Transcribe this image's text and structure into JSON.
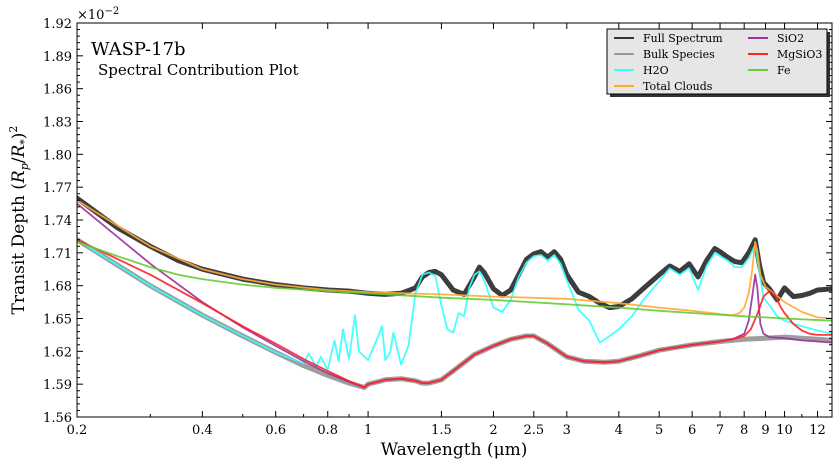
{
  "chart_data": {
    "type": "line",
    "title": "WASP-17b",
    "subtitle": "Spectral Contribution Plot",
    "xlabel": "Wavelength (μm)",
    "ylabel": "Transit Depth (R_p/R_*)^2",
    "ylabel_parts": {
      "pre": "Transit Depth (",
      "rp": "R",
      "p": "p",
      "slash": "/",
      "rs": "R",
      "s": "*",
      "post": ")",
      "sup": "2"
    },
    "y_multiplier": {
      "base": "×10",
      "exp": "−2"
    },
    "x_scale": "log",
    "xlim": [
      0.2,
      13.0
    ],
    "ylim": [
      1.56,
      1.92
    ],
    "x_ticks": [
      {
        "value": 0.2,
        "label": "0.2"
      },
      {
        "value": 0.4,
        "label": "0.4"
      },
      {
        "value": 0.6,
        "label": "0.6"
      },
      {
        "value": 0.8,
        "label": "0.8"
      },
      {
        "value": 1.0,
        "label": "1"
      },
      {
        "value": 1.5,
        "label": "1.5"
      },
      {
        "value": 2.0,
        "label": "2"
      },
      {
        "value": 2.5,
        "label": "2.5"
      },
      {
        "value": 3.0,
        "label": "3"
      },
      {
        "value": 4.0,
        "label": "4"
      },
      {
        "value": 5.0,
        "label": "5"
      },
      {
        "value": 6.0,
        "label": "6"
      },
      {
        "value": 7.0,
        "label": "7"
      },
      {
        "value": 8.0,
        "label": "8"
      },
      {
        "value": 9.0,
        "label": "9"
      },
      {
        "value": 10.0,
        "label": "10"
      },
      {
        "value": 12.0,
        "label": "12"
      }
    ],
    "y_ticks": [
      {
        "value": 1.56,
        "label": "1.56"
      },
      {
        "value": 1.59,
        "label": "1.59"
      },
      {
        "value": 1.62,
        "label": "1.62"
      },
      {
        "value": 1.65,
        "label": "1.65"
      },
      {
        "value": 1.68,
        "label": "1.68"
      },
      {
        "value": 1.71,
        "label": "1.71"
      },
      {
        "value": 1.74,
        "label": "1.74"
      },
      {
        "value": 1.77,
        "label": "1.77"
      },
      {
        "value": 1.8,
        "label": "1.80"
      },
      {
        "value": 1.83,
        "label": "1.83"
      },
      {
        "value": 1.86,
        "label": "1.86"
      },
      {
        "value": 1.89,
        "label": "1.89"
      },
      {
        "value": 1.92,
        "label": "1.92"
      }
    ],
    "grid": false,
    "legend_position": "top-right",
    "series": [
      {
        "name": "Full Spectrum",
        "color": "#333333",
        "width": 5,
        "x": [
          0.2,
          0.25,
          0.3,
          0.35,
          0.4,
          0.5,
          0.6,
          0.7,
          0.8,
          0.9,
          1.0,
          1.1,
          1.2,
          1.3,
          1.35,
          1.4,
          1.45,
          1.5,
          1.6,
          1.7,
          1.8,
          1.85,
          1.9,
          2.0,
          2.1,
          2.2,
          2.3,
          2.4,
          2.5,
          2.6,
          2.7,
          2.8,
          2.9,
          3.0,
          3.2,
          3.4,
          3.6,
          3.8,
          4.0,
          4.3,
          4.6,
          5.0,
          5.3,
          5.6,
          5.9,
          6.2,
          6.5,
          6.8,
          7.0,
          7.3,
          7.6,
          7.9,
          8.2,
          8.5,
          8.7,
          8.9,
          9.2,
          9.6,
          10.0,
          10.5,
          11.0,
          11.5,
          12.0,
          13.0
        ],
        "y": [
          1.76,
          1.733,
          1.716,
          1.703,
          1.695,
          1.686,
          1.681,
          1.678,
          1.676,
          1.675,
          1.673,
          1.672,
          1.673,
          1.678,
          1.688,
          1.692,
          1.693,
          1.69,
          1.676,
          1.672,
          1.688,
          1.697,
          1.692,
          1.677,
          1.671,
          1.676,
          1.69,
          1.704,
          1.709,
          1.711,
          1.706,
          1.711,
          1.704,
          1.69,
          1.674,
          1.67,
          1.664,
          1.66,
          1.661,
          1.668,
          1.678,
          1.69,
          1.698,
          1.693,
          1.7,
          1.688,
          1.703,
          1.714,
          1.711,
          1.706,
          1.702,
          1.701,
          1.71,
          1.722,
          1.699,
          1.683,
          1.677,
          1.667,
          1.678,
          1.67,
          1.671,
          1.673,
          1.676,
          1.677
        ]
      },
      {
        "name": "Bulk Species",
        "color": "#999999",
        "width": 5,
        "x": [
          0.2,
          0.3,
          0.4,
          0.5,
          0.6,
          0.7,
          0.8,
          0.9,
          0.98,
          1.0,
          1.05,
          1.1,
          1.2,
          1.3,
          1.35,
          1.4,
          1.5,
          1.6,
          1.8,
          2.0,
          2.2,
          2.4,
          2.5,
          2.7,
          3.0,
          3.3,
          3.7,
          4.0,
          4.5,
          5.0,
          6.0,
          7.0,
          8.0,
          9.0,
          10.0,
          11.0,
          12.0,
          13.0
        ],
        "y": [
          1.722,
          1.68,
          1.653,
          1.634,
          1.619,
          1.607,
          1.598,
          1.591,
          1.587,
          1.59,
          1.592,
          1.594,
          1.595,
          1.593,
          1.591,
          1.591,
          1.594,
          1.602,
          1.617,
          1.625,
          1.631,
          1.634,
          1.634,
          1.627,
          1.615,
          1.611,
          1.61,
          1.611,
          1.616,
          1.621,
          1.626,
          1.629,
          1.631,
          1.632,
          1.633,
          1.632,
          1.631,
          1.63
        ]
      },
      {
        "name": "H2O",
        "color": "#33ffff",
        "width": 1.8,
        "x": [
          0.2,
          0.3,
          0.4,
          0.5,
          0.6,
          0.7,
          0.72,
          0.75,
          0.77,
          0.8,
          0.83,
          0.85,
          0.87,
          0.9,
          0.93,
          0.95,
          1.0,
          1.05,
          1.08,
          1.1,
          1.13,
          1.15,
          1.2,
          1.25,
          1.3,
          1.35,
          1.4,
          1.45,
          1.5,
          1.55,
          1.6,
          1.65,
          1.7,
          1.75,
          1.8,
          1.85,
          1.9,
          1.95,
          2.0,
          2.1,
          2.2,
          2.3,
          2.4,
          2.5,
          2.6,
          2.7,
          2.8,
          2.9,
          3.0,
          3.2,
          3.4,
          3.6,
          3.8,
          4.0,
          4.3,
          4.6,
          5.0,
          5.3,
          5.6,
          5.9,
          6.2,
          6.5,
          6.8,
          7.0,
          7.3,
          7.6,
          7.9,
          8.2,
          8.5,
          8.7,
          8.9,
          9.2,
          9.6,
          10.0,
          11.0,
          12.0,
          13.0
        ],
        "y": [
          1.722,
          1.68,
          1.653,
          1.634,
          1.619,
          1.609,
          1.618,
          1.606,
          1.615,
          1.603,
          1.63,
          1.611,
          1.64,
          1.613,
          1.653,
          1.62,
          1.612,
          1.631,
          1.643,
          1.612,
          1.619,
          1.637,
          1.608,
          1.625,
          1.673,
          1.69,
          1.692,
          1.689,
          1.662,
          1.64,
          1.637,
          1.655,
          1.652,
          1.678,
          1.69,
          1.693,
          1.685,
          1.672,
          1.66,
          1.656,
          1.667,
          1.688,
          1.701,
          1.707,
          1.708,
          1.703,
          1.708,
          1.7,
          1.685,
          1.658,
          1.648,
          1.628,
          1.634,
          1.64,
          1.652,
          1.668,
          1.684,
          1.696,
          1.69,
          1.696,
          1.676,
          1.698,
          1.71,
          1.707,
          1.703,
          1.697,
          1.697,
          1.705,
          1.717,
          1.692,
          1.669,
          1.662,
          1.652,
          1.648,
          1.643,
          1.639,
          1.636
        ]
      },
      {
        "name": "Total Clouds",
        "color": "#ffaa33",
        "width": 1.8,
        "x": [
          0.2,
          0.3,
          0.4,
          0.5,
          0.6,
          0.8,
          1.0,
          1.5,
          2.0,
          3.0,
          4.0,
          5.0,
          6.0,
          7.0,
          7.5,
          7.8,
          8.0,
          8.2,
          8.35,
          8.5,
          8.6,
          8.75,
          9.0,
          9.5,
          10.0,
          11.0,
          12.0,
          13.0
        ],
        "y": [
          1.758,
          1.716,
          1.695,
          1.686,
          1.681,
          1.676,
          1.674,
          1.672,
          1.67,
          1.668,
          1.664,
          1.66,
          1.657,
          1.654,
          1.653,
          1.655,
          1.66,
          1.673,
          1.692,
          1.72,
          1.712,
          1.69,
          1.679,
          1.672,
          1.665,
          1.656,
          1.651,
          1.65
        ]
      },
      {
        "name": "SiO2",
        "color": "#993399",
        "width": 1.8,
        "x": [
          0.2,
          0.3,
          0.4,
          0.5,
          0.6,
          0.7,
          0.8,
          0.9,
          0.98,
          1.0,
          1.05,
          1.1,
          1.2,
          1.3,
          1.35,
          1.4,
          1.5,
          1.6,
          1.8,
          2.0,
          2.2,
          2.4,
          2.5,
          2.7,
          3.0,
          3.3,
          3.7,
          4.0,
          4.5,
          5.0,
          6.0,
          7.0,
          7.5,
          8.0,
          8.2,
          8.4,
          8.5,
          8.6,
          8.75,
          8.9,
          9.2,
          10.0,
          11.0,
          12.0,
          13.0
        ],
        "y": [
          1.755,
          1.7,
          1.665,
          1.642,
          1.625,
          1.611,
          1.6,
          1.592,
          1.587,
          1.59,
          1.592,
          1.594,
          1.595,
          1.593,
          1.591,
          1.591,
          1.594,
          1.602,
          1.617,
          1.625,
          1.631,
          1.634,
          1.634,
          1.627,
          1.615,
          1.611,
          1.61,
          1.611,
          1.616,
          1.621,
          1.626,
          1.629,
          1.631,
          1.636,
          1.648,
          1.675,
          1.69,
          1.678,
          1.645,
          1.636,
          1.633,
          1.632,
          1.63,
          1.629,
          1.628
        ]
      },
      {
        "name": "MgSiO3",
        "color": "#ff2222",
        "width": 1.8,
        "x": [
          0.2,
          0.3,
          0.4,
          0.5,
          0.6,
          0.7,
          0.8,
          0.9,
          0.98,
          1.0,
          1.05,
          1.1,
          1.2,
          1.3,
          1.35,
          1.4,
          1.5,
          1.6,
          1.8,
          2.0,
          2.2,
          2.4,
          2.5,
          2.7,
          3.0,
          3.3,
          3.7,
          4.0,
          4.5,
          5.0,
          6.0,
          7.0,
          7.5,
          8.0,
          8.3,
          8.6,
          8.9,
          9.2,
          9.5,
          9.8,
          10.0,
          10.5,
          11.0,
          11.5,
          12.0,
          13.0
        ],
        "y": [
          1.722,
          1.69,
          1.664,
          1.643,
          1.627,
          1.613,
          1.602,
          1.593,
          1.587,
          1.59,
          1.592,
          1.594,
          1.595,
          1.593,
          1.591,
          1.591,
          1.594,
          1.602,
          1.617,
          1.625,
          1.631,
          1.634,
          1.634,
          1.627,
          1.615,
          1.611,
          1.61,
          1.611,
          1.616,
          1.621,
          1.626,
          1.629,
          1.631,
          1.634,
          1.64,
          1.654,
          1.67,
          1.675,
          1.671,
          1.66,
          1.655,
          1.645,
          1.639,
          1.636,
          1.635,
          1.635
        ]
      },
      {
        "name": "Fe",
        "color": "#66cc33",
        "width": 1.8,
        "x": [
          0.2,
          0.25,
          0.3,
          0.35,
          0.4,
          0.5,
          0.6,
          0.8,
          1.0,
          1.5,
          2.0,
          3.0,
          4.0,
          5.0,
          6.0,
          8.0,
          10.0,
          13.0
        ],
        "y": [
          1.72,
          1.707,
          1.697,
          1.69,
          1.686,
          1.681,
          1.678,
          1.675,
          1.673,
          1.669,
          1.667,
          1.663,
          1.66,
          1.657,
          1.655,
          1.652,
          1.65,
          1.648
        ]
      }
    ]
  }
}
